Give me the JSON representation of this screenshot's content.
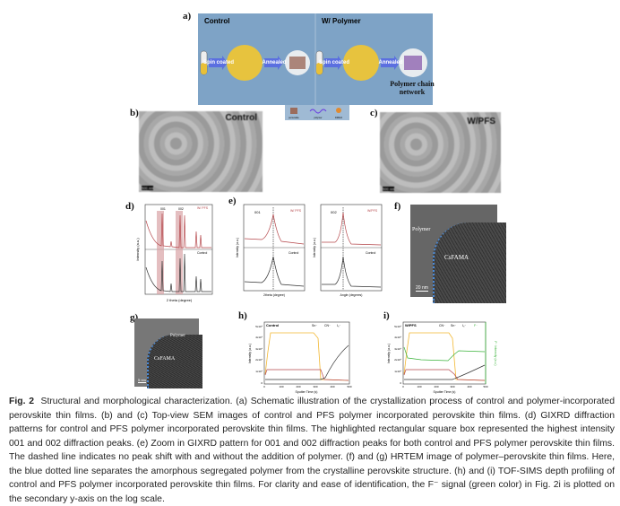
{
  "panels": {
    "a": "a)",
    "b": "b)",
    "c": "c)",
    "d": "d)",
    "e": "e)",
    "f": "f)",
    "g": "g)",
    "h": "h)",
    "i": "i)"
  },
  "schematic": {
    "left_title": "Control",
    "right_title": "W/ Polymer",
    "network_label": "Polymer chain network",
    "arrow1": "Spin coated",
    "arrow2": "Annealed",
    "legend": [
      "perovskite",
      "polymer",
      "DMACl"
    ]
  },
  "sem": {
    "b_label": "Control",
    "c_label": "W/PFS",
    "scale": "500 nm"
  },
  "xrd": {
    "series_top": "W/ PFS",
    "series_bottom": "Control",
    "peak1": "001",
    "peak2": "002",
    "xlabel": "2 theta (degree)",
    "ylabel": "Intensity (a.u.)",
    "xticks": [
      "5",
      "10",
      "15",
      "20",
      "25",
      "30",
      "35",
      "40",
      "45"
    ]
  },
  "zoom": {
    "left": {
      "peak": "001",
      "legend_top": "W/ PFS",
      "legend_bottom": "Control",
      "xlabel": "2theta (degree)",
      "xticks": [
        "12",
        "13",
        "14",
        "15",
        "16"
      ]
    },
    "right": {
      "peak": "002",
      "legend_top": "W/PFS",
      "legend_bottom": "Control",
      "xlabel": "Angle (degrees)",
      "xticks": [
        "27",
        "28",
        "29",
        "30"
      ]
    },
    "ylabel": "Intensity (a.u.)"
  },
  "tem": {
    "polymer": "Polymer",
    "perovskite": "CsFAMA",
    "scale_f": "20 nm",
    "scale_g": "5 nm"
  },
  "tofsims_h": {
    "title": "Control",
    "legend": [
      "Sn⁻",
      "CN⁻",
      "I₃⁻"
    ],
    "ylabel": "Intensity (a.u.)",
    "xlabel": "Sputter Time (s)",
    "yticks": [
      "0",
      "1x10⁴",
      "2x10⁴",
      "3x10⁴",
      "4x10⁴",
      "5x10⁴"
    ],
    "xticks": [
      "0",
      "100",
      "200",
      "300",
      "400",
      "500"
    ]
  },
  "tofsims_i": {
    "title": "W/PFS",
    "legend": [
      "CN⁻",
      "Sn⁻",
      "I₃⁻",
      "F⁻"
    ],
    "ylabel": "Intensity (a.u.)",
    "y2label": "F⁻ Intensity (a.u.)",
    "xlabel": "Sputter Time (s)",
    "yticks": [
      "0",
      "1x10⁴",
      "2x10⁴",
      "3x10⁴",
      "4x10⁴",
      "5x10⁴"
    ],
    "xticks": [
      "0",
      "100",
      "200",
      "300",
      "400",
      "500"
    ]
  },
  "colors": {
    "red": "#b5474b",
    "black": "#333333",
    "yellow": "#f2b731",
    "green": "#3bb33b",
    "blue": "#6e9cc7"
  },
  "caption": {
    "label": "Fig. 2",
    "text": "Structural and morphological characterization. (a) Schematic illustration of the crystallization process of control and polymer-incorporated perovskite thin films. (b) and (c) Top-view SEM images of control and PFS polymer incorporated perovskite thin films. (d) GIXRD diffraction patterns for control and PFS polymer incorporated perovskite thin films. The highlighted rectangular square box represented the highest intensity 001 and 002 diffraction peaks. (e) Zoom in GIXRD pattern for 001 and 002 diffraction peaks for both control and PFS polymer perovskite thin films. The dashed line indicates no peak shift with and without the addition of polymer. (f) and (g) HRTEM image of polymer–perovskite thin films. Here, the blue dotted line separates the amorphous segregated polymer from the crystalline perovskite structure. (h) and (i) TOF-SIMS depth profiling of control and PFS polymer incorporated perovskite thin films. For clarity and ease of identification, the F⁻ signal (green color) in Fig. 2i is plotted on the secondary y-axis on the log scale."
  }
}
